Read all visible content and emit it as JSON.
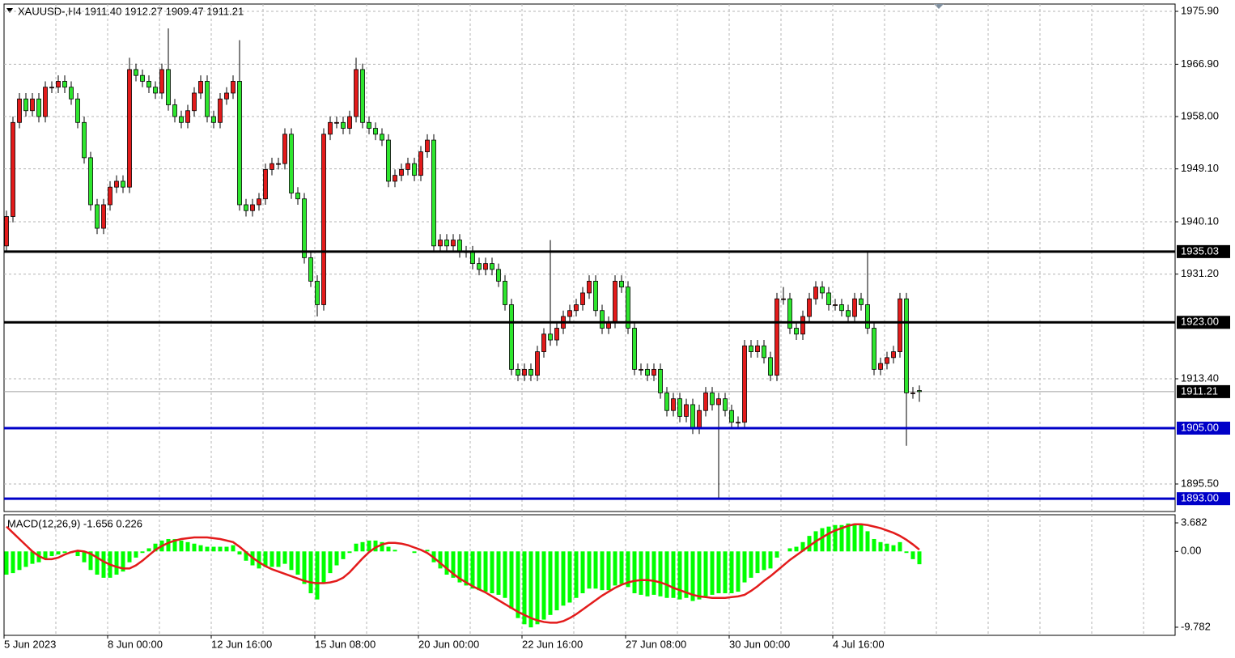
{
  "chart_data": [
    {
      "type": "candlestick",
      "title": "XAUUSD-,H4  1911.40 1912.27 1909.47 1911.21",
      "open": [
        1936,
        1941,
        1957,
        1961,
        1959,
        1961,
        1958,
        1963,
        1963,
        1964,
        1963,
        1961,
        1957,
        1951,
        1943,
        1939,
        1943,
        1946,
        1947,
        1946,
        1966,
        1965,
        1964,
        1963,
        1962,
        1966,
        1960,
        1958,
        1957,
        1959,
        1962,
        1964,
        1958,
        1957,
        1961,
        1962,
        1964,
        1943,
        1942,
        1943,
        1944,
        1949,
        1950,
        1950,
        1955,
        1945,
        1944,
        1934,
        1930,
        1926,
        1955,
        1957,
        1957,
        1956,
        1958,
        1966,
        1957,
        1956,
        1955,
        1954,
        1947,
        1948,
        1949,
        1950,
        1948,
        1952,
        1954,
        1936,
        1937,
        1936,
        1937,
        1935,
        1935,
        1933,
        1932,
        1933,
        1932,
        1930,
        1926,
        1915,
        1914,
        1915,
        1914,
        1918,
        1921,
        1920,
        1922,
        1924,
        1925,
        1926,
        1928,
        1930,
        1925,
        1922,
        1923,
        1930,
        1929,
        1922,
        1915,
        1915,
        1914,
        1915,
        1911,
        1908,
        1910,
        1907,
        1909,
        1905,
        1908,
        1911,
        1909,
        1910,
        1908,
        1906,
        1906,
        1919,
        1918,
        1919,
        1917,
        1914,
        1927,
        1927,
        1922,
        1921,
        1924,
        1927,
        1929,
        1928,
        1926,
        1926,
        1925,
        1924,
        1927,
        1926,
        1922,
        1915,
        1916,
        1917,
        1918,
        1927,
        1911,
        1911.4
      ],
      "high": [
        1942,
        1958,
        1962,
        1962,
        1962,
        1962,
        1964,
        1964,
        1965,
        1965,
        1964,
        1962,
        1958,
        1952,
        1944,
        1944,
        1947,
        1948,
        1948,
        1968,
        1967,
        1966,
        1965,
        1964,
        1967,
        1973,
        1961,
        1959,
        1960,
        1963,
        1965,
        1965,
        1959,
        1962,
        1963,
        1965,
        1971,
        1944,
        1944,
        1945,
        1950,
        1951,
        1951,
        1956,
        1956,
        1946,
        1945,
        1935,
        1931,
        1956,
        1958,
        1958,
        1958,
        1959,
        1968,
        1967,
        1958,
        1957,
        1956,
        1955,
        1949,
        1950,
        1951,
        1951,
        1953,
        1955,
        1955,
        1938,
        1938,
        1938,
        1938,
        1936,
        1936,
        1934,
        1934,
        1934,
        1933,
        1931,
        1927,
        1916,
        1916,
        1916,
        1919,
        1922,
        1937,
        1923,
        1925,
        1926,
        1927,
        1929,
        1931,
        1931,
        1926,
        1924,
        1931,
        1931,
        1930,
        1923,
        1916,
        1916,
        1916,
        1916,
        1912,
        1911,
        1911,
        1910,
        1910,
        1909,
        1912,
        1912,
        1911,
        1911,
        1909,
        1907,
        1920,
        1920,
        1920,
        1920,
        1918,
        1928,
        1929,
        1928,
        1923,
        1925,
        1928,
        1930,
        1930,
        1929,
        1927,
        1927,
        1926,
        1928,
        1928,
        1935,
        1923,
        1917,
        1918,
        1919,
        1928,
        1928,
        1912,
        1912.27
      ],
      "low": [
        1935,
        1940,
        1956,
        1958,
        1958,
        1957,
        1957,
        1962,
        1962,
        1962,
        1960,
        1956,
        1950,
        1942,
        1938,
        1938,
        1942,
        1945,
        1945,
        1945,
        1964,
        1963,
        1962,
        1961,
        1961,
        1959,
        1957,
        1956,
        1956,
        1958,
        1961,
        1957,
        1956,
        1956,
        1960,
        1961,
        1942,
        1941,
        1941,
        1942,
        1943,
        1948,
        1949,
        1949,
        1944,
        1943,
        1933,
        1929,
        1924,
        1925,
        1954,
        1956,
        1955,
        1955,
        1957,
        1956,
        1955,
        1954,
        1953,
        1946,
        1946,
        1947,
        1948,
        1947,
        1947,
        1951,
        1935,
        1935,
        1935,
        1935,
        1934,
        1934,
        1932,
        1931,
        1931,
        1931,
        1929,
        1925,
        1914,
        1913,
        1913,
        1913,
        1913,
        1917,
        1919,
        1919,
        1921,
        1923,
        1924,
        1925,
        1927,
        1924,
        1921,
        1921,
        1922,
        1928,
        1921,
        1914,
        1914,
        1913,
        1913,
        1910,
        1907,
        1907,
        1906,
        1906,
        1904,
        1904,
        1907,
        1908,
        1893,
        1907,
        1905,
        1905,
        1905,
        1917,
        1917,
        1916,
        1913,
        1913,
        1926,
        1921,
        1920,
        1920,
        1923,
        1926,
        1927,
        1925,
        1925,
        1924,
        1923,
        1923,
        1925,
        1921,
        1914,
        1914,
        1915,
        1916,
        1917,
        1902,
        1910,
        1909.47
      ],
      "close": [
        1941,
        1957,
        1961,
        1959,
        1961,
        1958,
        1963,
        1963,
        1964,
        1963,
        1961,
        1957,
        1951,
        1943,
        1939,
        1943,
        1946,
        1947,
        1946,
        1966,
        1965,
        1964,
        1963,
        1962,
        1966,
        1960,
        1958,
        1957,
        1959,
        1962,
        1964,
        1958,
        1957,
        1961,
        1962,
        1964,
        1943,
        1942,
        1943,
        1944,
        1949,
        1950,
        1950,
        1955,
        1945,
        1944,
        1934,
        1930,
        1926,
        1955,
        1957,
        1957,
        1956,
        1958,
        1966,
        1957,
        1956,
        1955,
        1954,
        1947,
        1948,
        1949,
        1950,
        1948,
        1952,
        1954,
        1936,
        1937,
        1936,
        1937,
        1935,
        1935,
        1933,
        1932,
        1933,
        1932,
        1930,
        1926,
        1915,
        1914,
        1915,
        1914,
        1918,
        1921,
        1920,
        1922,
        1924,
        1925,
        1926,
        1928,
        1930,
        1925,
        1922,
        1923,
        1930,
        1929,
        1922,
        1915,
        1915,
        1914,
        1915,
        1911,
        1908,
        1910,
        1907,
        1909,
        1905,
        1908,
        1911,
        1909,
        1910,
        1908,
        1906,
        1906,
        1919,
        1918,
        1919,
        1917,
        1914,
        1927,
        1927,
        1922,
        1921,
        1924,
        1927,
        1929,
        1928,
        1926,
        1926,
        1925,
        1924,
        1927,
        1926,
        1922,
        1915,
        1916,
        1917,
        1918,
        1927,
        1911,
        1911,
        1911.21
      ],
      "up_color": "#e31b1b",
      "down_color": "#2ee62e",
      "ylim": [
        1890.82,
        1977.14
      ],
      "yticks": [
        {
          "value": 1975.9,
          "label": "1975.90"
        },
        {
          "value": 1966.9,
          "label": "1966.90"
        },
        {
          "value": 1958,
          "label": "1958.00"
        },
        {
          "value": 1949.1,
          "label": "1949.10"
        },
        {
          "value": 1940.1,
          "label": "1940.10"
        },
        {
          "value": 1931.2,
          "label": "1931.20"
        },
        {
          "value": 1913.4,
          "label": "1913.40"
        },
        {
          "value": 1895.5,
          "label": "1895.50"
        }
      ],
      "grid": true,
      "levels": [
        {
          "value": 1935.03,
          "label": "1935.03",
          "color": "#000000"
        },
        {
          "value": 1923,
          "label": "1923.00",
          "color": "#000000"
        },
        {
          "value": 1905,
          "label": "1905.00",
          "color": "#0000c8"
        },
        {
          "value": 1893,
          "label": "1893.00",
          "color": "#0000c8"
        }
      ],
      "current_price": {
        "value": 1911.21,
        "label": "1911.21"
      }
    },
    {
      "type": "macd",
      "title": "MACD(12,26,9) -1.656 0.226",
      "categories": [
        "5 Jun 2023",
        null,
        null,
        null,
        null,
        null,
        null,
        null,
        null,
        null,
        null,
        null,
        null,
        null,
        null,
        null,
        "8 Jun 00:00",
        null,
        null,
        null,
        null,
        null,
        null,
        null,
        null,
        null,
        null,
        null,
        null,
        null,
        null,
        null,
        "12 Jun 16:00",
        null,
        null,
        null,
        null,
        null,
        null,
        null,
        null,
        null,
        null,
        null,
        null,
        null,
        null,
        null,
        "15 Jun 08:00",
        null,
        null,
        null,
        null,
        null,
        null,
        null,
        null,
        null,
        null,
        null,
        null,
        null,
        null,
        null,
        "20 Jun 00:00",
        null,
        null,
        null,
        null,
        null,
        null,
        null,
        null,
        null,
        null,
        null,
        null,
        null,
        null,
        null,
        "22 Jun 16:00",
        null,
        null,
        null,
        null,
        null,
        null,
        null,
        null,
        null,
        null,
        null,
        null,
        null,
        null,
        null,
        "27 Jun 08:00",
        null,
        null,
        null,
        null,
        null,
        null,
        null,
        null,
        null,
        null,
        null,
        null,
        null,
        null,
        null,
        "30 Jun 00:00",
        null,
        null,
        null,
        null,
        null,
        null,
        null,
        null,
        null,
        null,
        null,
        null,
        null,
        null,
        null,
        "4 Jul 16:00",
        null,
        null,
        null,
        null,
        null,
        null,
        null,
        null,
        null,
        null,
        null,
        null,
        null
      ],
      "series": [
        {
          "color": "#00ff00",
          "values": [
            -3,
            -2.8,
            -2.4,
            -2.0,
            -1.6,
            -1.4,
            -1.0,
            -0.6,
            -0.4,
            -0.2,
            -0.2,
            -0.6,
            -1.4,
            -2.4,
            -3.0,
            -3.4,
            -3.4,
            -3.0,
            -2.6,
            -1.4,
            -0.8,
            -0.2,
            0.4,
            1.0,
            1.4,
            1.6,
            1.6,
            1.4,
            1.2,
            1.0,
            0.8,
            0.6,
            0.6,
            0.6,
            0.6,
            0.8,
            -0.4,
            -1.2,
            -1.8,
            -2.2,
            -2.0,
            -2.0,
            -2.0,
            -1.6,
            -2.4,
            -3.0,
            -4.2,
            -5.4,
            -6.2,
            -4.2,
            -2.8,
            -1.8,
            -1.0,
            -0.2,
            1.0,
            1.2,
            1.4,
            1.4,
            1.2,
            0.6,
            0.2,
            0.0,
            0.0,
            -0.2,
            0.0,
            0.2,
            -1.4,
            -2.2,
            -3.0,
            -3.4,
            -4.0,
            -4.4,
            -4.8,
            -5.0,
            -5.2,
            -5.4,
            -5.6,
            -6.0,
            -7.4,
            -8.6,
            -9.4,
            -9.8,
            -9.4,
            -8.8,
            -8.2,
            -7.6,
            -7.0,
            -6.6,
            -6.0,
            -5.4,
            -4.8,
            -4.8,
            -5.0,
            -5.0,
            -4.4,
            -4.2,
            -4.6,
            -5.4,
            -5.6,
            -5.8,
            -5.6,
            -5.8,
            -6.0,
            -6.0,
            -6.2,
            -6.0,
            -6.4,
            -6.2,
            -5.8,
            -5.6,
            -5.4,
            -5.4,
            -5.4,
            -5.2,
            -4.0,
            -3.4,
            -2.8,
            -2.4,
            -2.2,
            -0.8,
            0.0,
            0.4,
            0.6,
            1.2,
            2.0,
            2.6,
            3.0,
            3.2,
            3.4,
            3.4,
            3.6,
            3.6,
            3.4,
            2.6,
            1.6,
            1.2,
            1.0,
            0.8,
            1.2,
            -0.2,
            -1.0,
            -1.656
          ]
        },
        {
          "color": "#e31b1b",
          "values": [
            3.2,
            2.4,
            1.6,
            0.8,
            0.0,
            -0.6,
            -1.0,
            -1.0,
            -0.8,
            -0.4,
            -0.1,
            0.1,
            0.0,
            -0.3,
            -0.8,
            -1.3,
            -1.7,
            -2.0,
            -2.2,
            -2.2,
            -1.8,
            -1.2,
            -0.5,
            0.2,
            0.7,
            1.1,
            1.4,
            1.6,
            1.7,
            1.8,
            1.8,
            1.8,
            1.7,
            1.6,
            1.4,
            1.2,
            0.6,
            -0.1,
            -0.8,
            -1.4,
            -1.9,
            -2.3,
            -2.6,
            -2.9,
            -3.2,
            -3.5,
            -3.8,
            -4.0,
            -4.1,
            -4.1,
            -4.0,
            -3.8,
            -3.4,
            -2.7,
            -1.8,
            -0.9,
            -0.1,
            0.5,
            0.9,
            1.1,
            1.1,
            1.0,
            0.8,
            0.5,
            0.2,
            -0.2,
            -0.8,
            -1.5,
            -2.2,
            -2.9,
            -3.5,
            -4.0,
            -4.5,
            -4.9,
            -5.3,
            -5.8,
            -6.3,
            -6.8,
            -7.3,
            -7.8,
            -8.2,
            -8.6,
            -8.9,
            -9.1,
            -9.2,
            -9.2,
            -9.0,
            -8.6,
            -8.1,
            -7.5,
            -6.9,
            -6.3,
            -5.7,
            -5.2,
            -4.7,
            -4.3,
            -4.0,
            -3.8,
            -3.7,
            -3.7,
            -3.8,
            -4.0,
            -4.3,
            -4.7,
            -5.0,
            -5.3,
            -5.6,
            -5.8,
            -5.9,
            -6.0,
            -6.0,
            -6.0,
            -5.9,
            -5.8,
            -5.6,
            -5.1,
            -4.5,
            -3.8,
            -3.2,
            -2.5,
            -1.8,
            -1.1,
            -0.5,
            0.1,
            0.7,
            1.3,
            1.8,
            2.3,
            2.7,
            3.0,
            3.3,
            3.5,
            3.5,
            3.4,
            3.2,
            3.0,
            2.7,
            2.4,
            2.0,
            1.5,
            0.9,
            0.226
          ]
        }
      ],
      "ylim": [
        -10.83,
        4.73
      ],
      "yticks": [
        3.682,
        {
          "value": 0,
          "label": "0.00"
        },
        -9.782
      ]
    }
  ]
}
